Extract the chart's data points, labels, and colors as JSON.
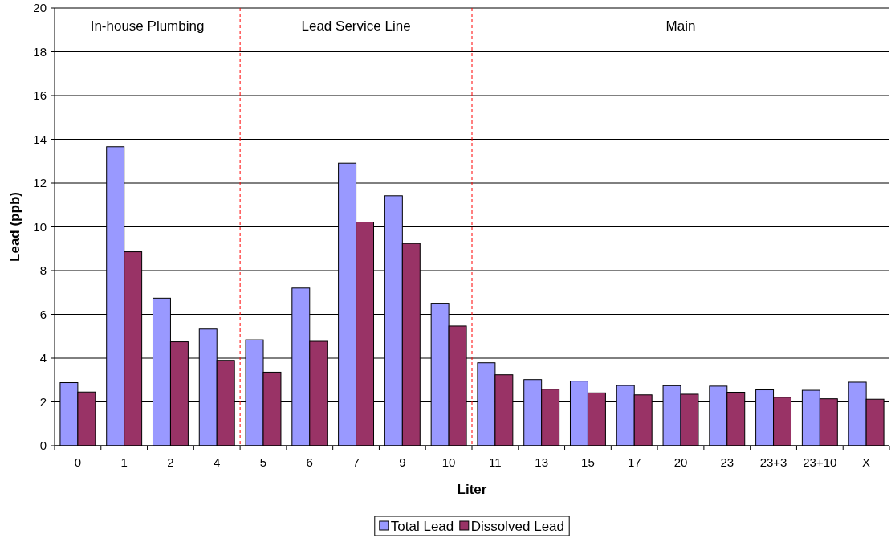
{
  "chart_data": {
    "type": "bar",
    "xlabel": "Liter",
    "ylabel": "Lead (ppb)",
    "categories": [
      "0",
      "1",
      "2",
      "4",
      "5",
      "6",
      "7",
      "9",
      "10",
      "11",
      "13",
      "15",
      "17",
      "20",
      "23",
      "23+3",
      "23+10",
      "X"
    ],
    "series": [
      {
        "name": "Total Lead",
        "color": "#9999ff",
        "values": [
          2.88,
          13.66,
          6.74,
          5.33,
          4.84,
          7.2,
          12.91,
          11.42,
          6.51,
          3.79,
          3.02,
          2.95,
          2.75,
          2.74,
          2.72,
          2.55,
          2.53,
          2.9
        ]
      },
      {
        "name": "Dissolved Lead",
        "color": "#993366",
        "values": [
          2.45,
          8.86,
          4.75,
          3.9,
          3.36,
          4.77,
          10.22,
          9.24,
          5.47,
          3.24,
          2.58,
          2.41,
          2.32,
          2.35,
          2.44,
          2.21,
          2.14,
          2.12
        ]
      }
    ],
    "ylim": [
      0,
      20
    ],
    "yticks": [
      0,
      2,
      4,
      6,
      8,
      10,
      12,
      14,
      16,
      18,
      20
    ],
    "grid": "y",
    "legend": "bottom",
    "annotations": [
      "In-house Plumbing",
      "Lead Service Line",
      "Main"
    ]
  }
}
